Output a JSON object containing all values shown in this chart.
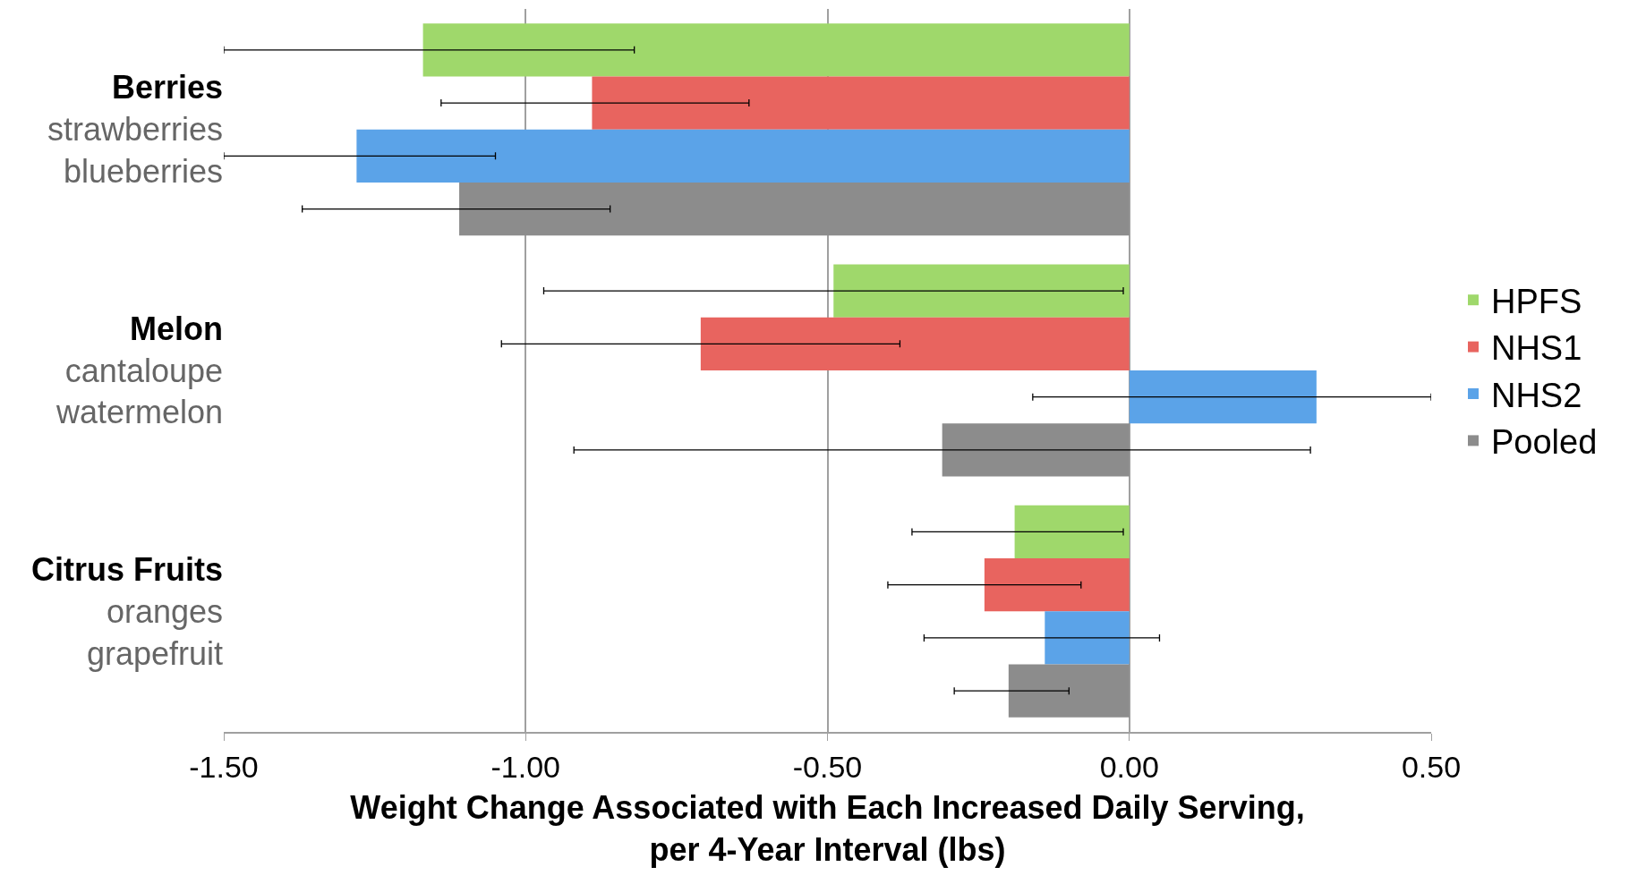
{
  "chart_data": {
    "type": "bar",
    "orientation": "horizontal",
    "xlabel": "Weight Change Associated with Each Increased Daily Serving,\nper 4-Year Interval (lbs)",
    "categories": [
      "Berries\nstrawberries\nblueberries",
      "Melon\ncantaloupe\nwatermelon",
      "Citrus Fruits\noranges\ngrapefruit"
    ],
    "series": [
      {
        "name": "HPFS",
        "color": "#9fd86b",
        "values": [
          -1.17,
          -0.49,
          -0.19
        ],
        "errors": [
          [
            -1.5,
            -0.82
          ],
          [
            -0.97,
            -0.01
          ],
          [
            -0.36,
            -0.01
          ]
        ]
      },
      {
        "name": "NHS1",
        "color": "#e8645f",
        "values": [
          -0.89,
          -0.71,
          -0.24
        ],
        "errors": [
          [
            -1.14,
            -0.63
          ],
          [
            -1.04,
            -0.38
          ],
          [
            -0.4,
            -0.08
          ]
        ]
      },
      {
        "name": "NHS2",
        "color": "#5ba3e8",
        "values": [
          -1.28,
          0.31,
          -0.14
        ],
        "errors": [
          [
            -1.5,
            -1.05
          ],
          [
            -0.16,
            0.5
          ],
          [
            -0.34,
            0.05
          ]
        ]
      },
      {
        "name": "Pooled",
        "color": "#8c8c8c",
        "values": [
          -1.11,
          -0.31,
          -0.2
        ],
        "errors": [
          [
            -1.37,
            -0.86
          ],
          [
            -0.92,
            0.3
          ],
          [
            -0.29,
            -0.1
          ]
        ]
      }
    ],
    "xlim": [
      -1.5,
      0.5
    ],
    "xticks": [
      {
        "value": -1.5,
        "label": "-1.50"
      },
      {
        "value": -1.0,
        "label": "-1.00"
      },
      {
        "value": -0.5,
        "label": "-0.50"
      },
      {
        "value": 0,
        "label": "0.00"
      },
      {
        "value": 0.5,
        "label": "0.50"
      }
    ],
    "grid": "x",
    "legend": "right"
  }
}
